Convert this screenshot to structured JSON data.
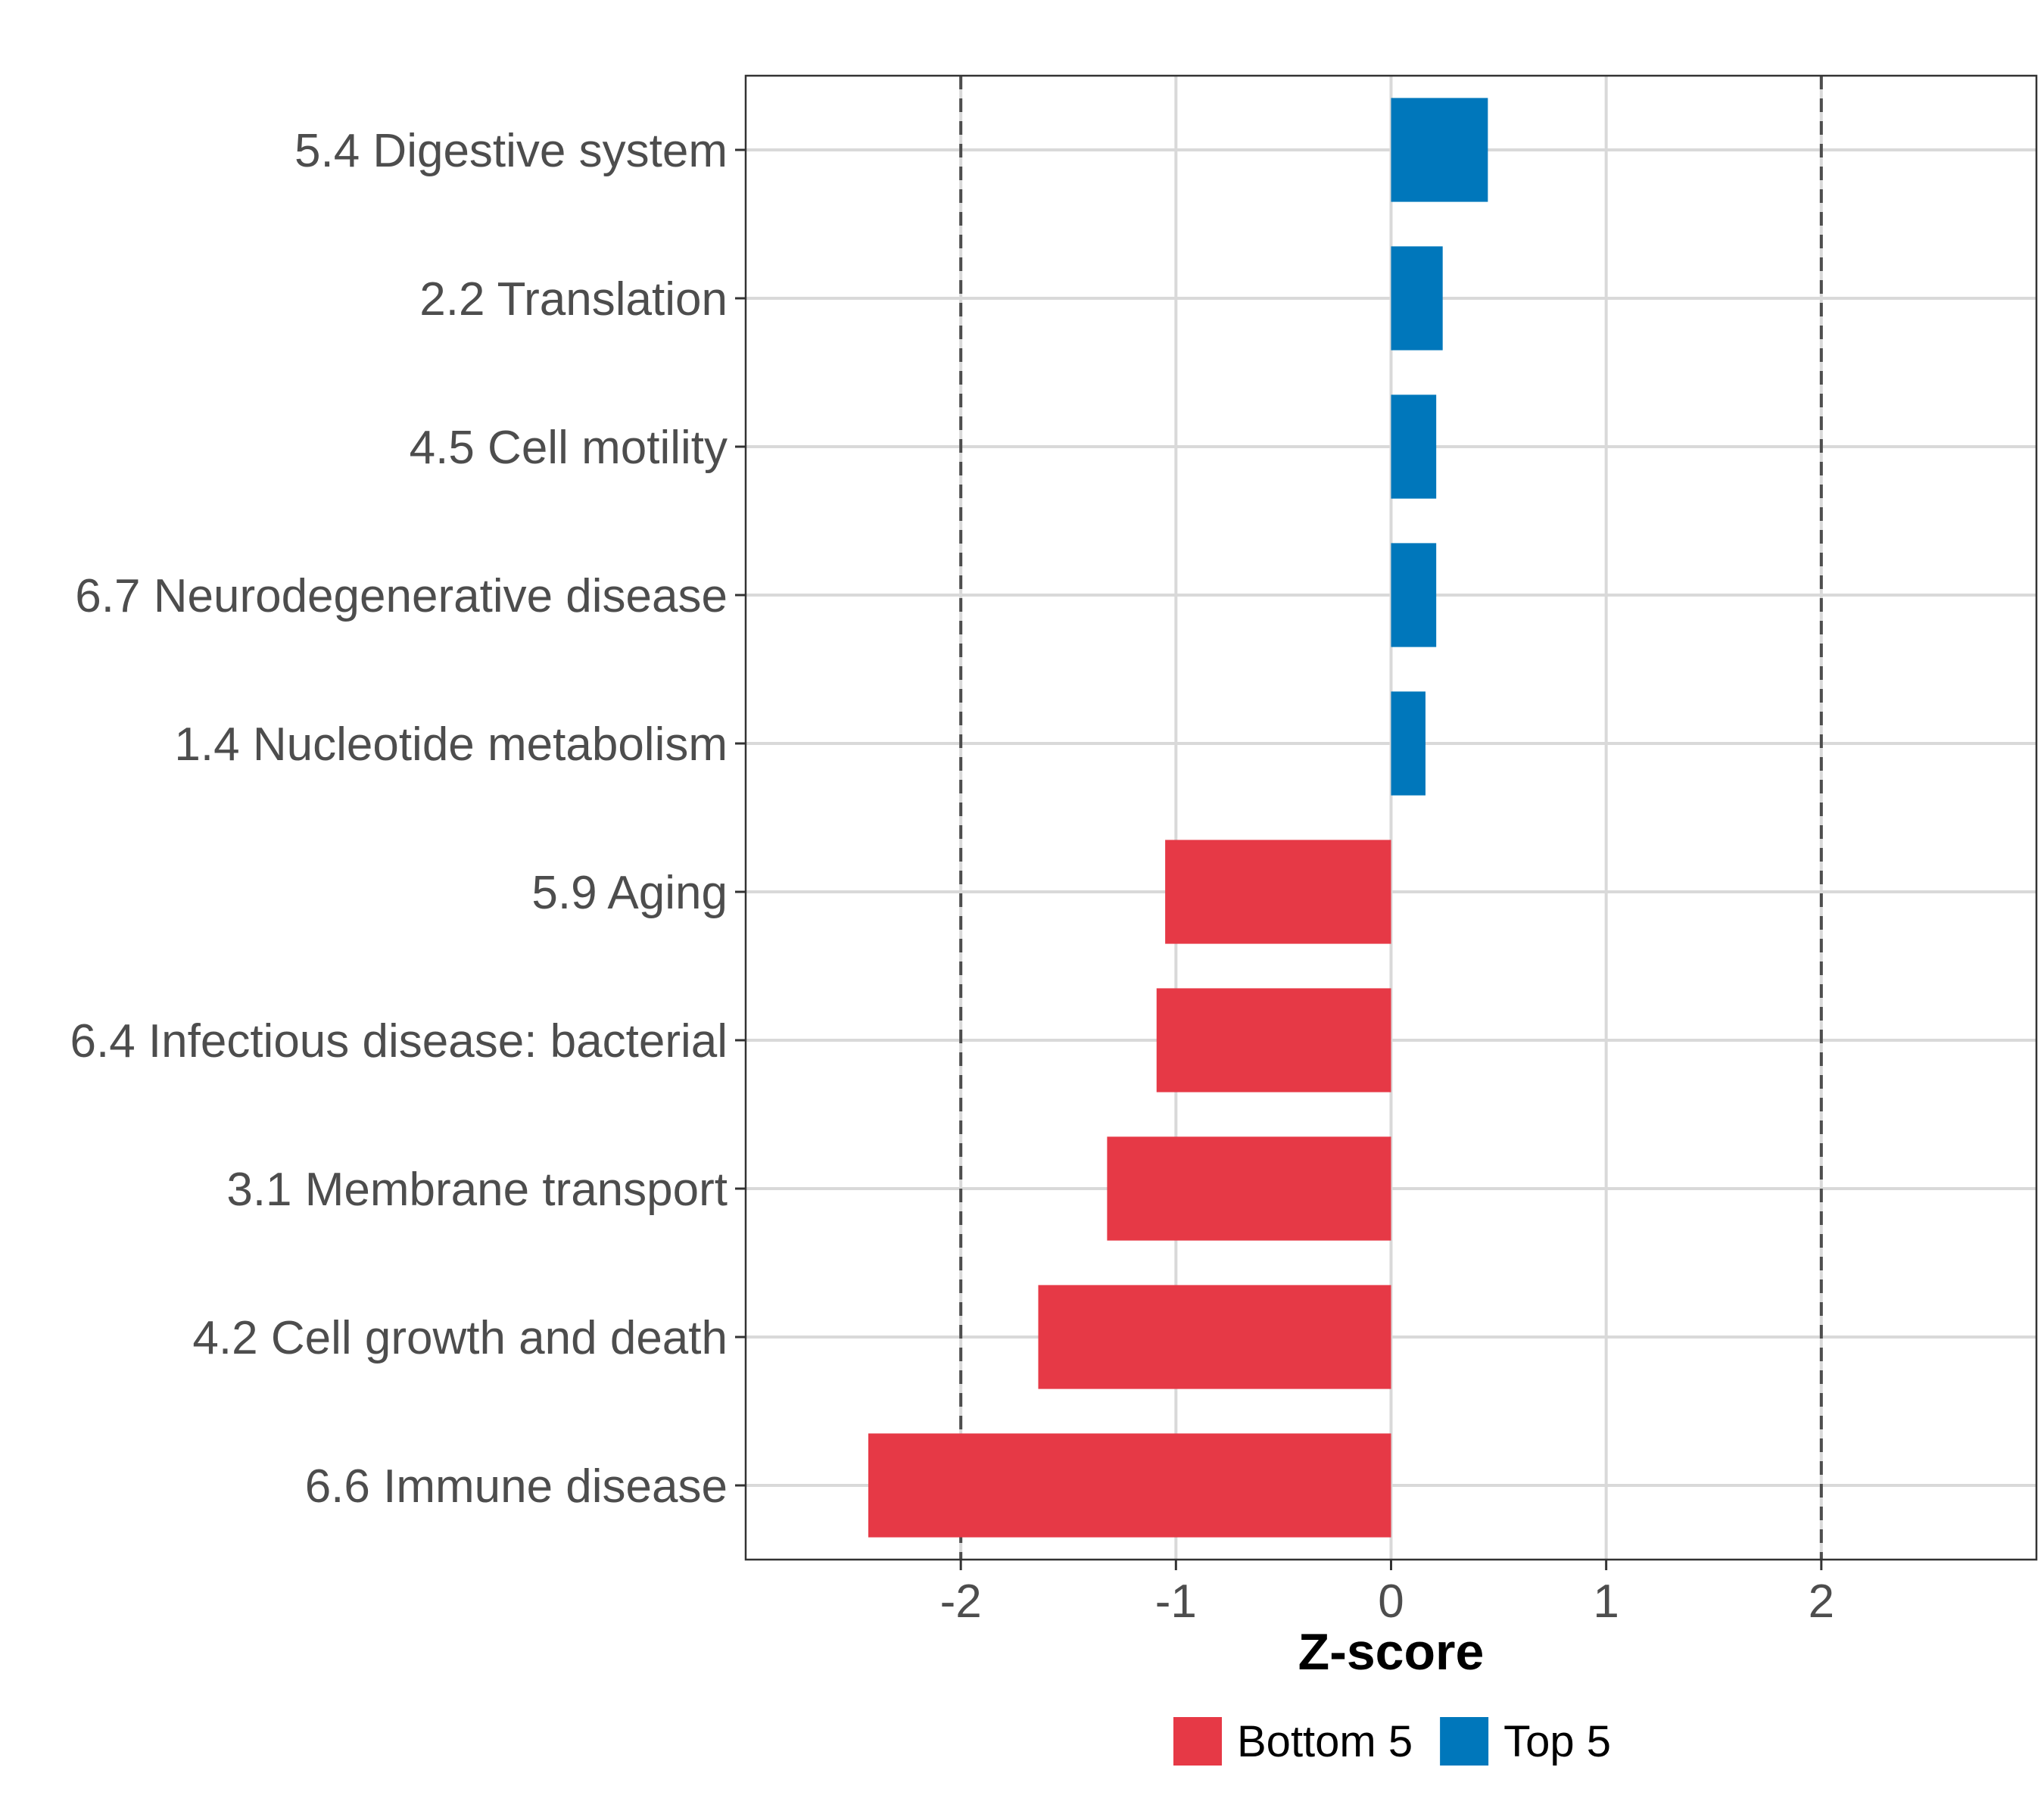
{
  "chart_data": {
    "type": "bar",
    "orientation": "horizontal",
    "categories": [
      "5.4 Digestive system",
      "2.2 Translation",
      "4.5 Cell motility",
      "6.7 Neurodegenerative disease",
      "1.4 Nucleotide metabolism",
      "5.9 Aging",
      "6.4 Infectious disease: bacterial",
      "3.1 Membrane transport",
      "4.2 Cell growth and death",
      "6.6 Immune disease"
    ],
    "values": [
      0.45,
      0.24,
      0.21,
      0.21,
      0.16,
      -1.05,
      -1.09,
      -1.32,
      -1.64,
      -2.43
    ],
    "groups": [
      "Top 5",
      "Top 5",
      "Top 5",
      "Top 5",
      "Top 5",
      "Bottom 5",
      "Bottom 5",
      "Bottom 5",
      "Bottom 5",
      "Bottom 5"
    ],
    "xlabel": "Z-score",
    "ylabel": "",
    "xlim": [
      -3,
      3
    ],
    "xticks": [
      -2,
      -1,
      0,
      1,
      2
    ],
    "xtick_labels": [
      "-2",
      "-1",
      "0",
      "1",
      "2"
    ],
    "reference_lines": [
      -2,
      2
    ],
    "grid": true,
    "legend": {
      "position": "bottom",
      "entries": [
        {
          "label": "Bottom 5",
          "color": "#e63946"
        },
        {
          "label": "Top 5",
          "color": "#0077bb"
        }
      ]
    },
    "colors": {
      "Bottom 5": "#e63946",
      "Top 5": "#0077bb"
    }
  }
}
